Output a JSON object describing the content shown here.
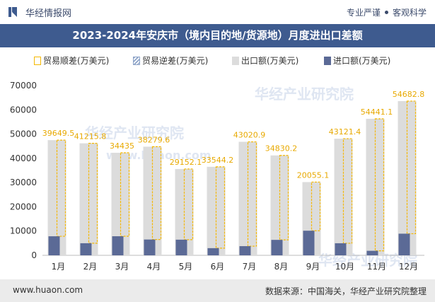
{
  "header": {
    "site_name": "华经情报网",
    "slogan_left": "专业严谨",
    "slogan_right": "客观科学"
  },
  "title": "2023-2024年安庆市（境内目的地/货源地）月度进出口差额",
  "legend": {
    "surplus": "贸易顺差(万美元)",
    "deficit": "贸易逆差(万美元)",
    "export": "出口额(万美元)",
    "import": "进口额(万美元)"
  },
  "footer": {
    "url": "www.huaon.com",
    "source": "数据来源：中国海关，华经产业研究院整理"
  },
  "watermark": {
    "text1": "华经产业研究院",
    "text2": "www.huaon.com"
  },
  "colors": {
    "surplus": "#f5b800",
    "export": "#dcdcdc",
    "import": "#5b6a96",
    "label": "#e8a900",
    "title_bar": "#3e5b8f"
  },
  "chart_data": {
    "type": "bar",
    "categories": [
      "1月",
      "2月",
      "3月",
      "4月",
      "5月",
      "6月",
      "7月",
      "8月",
      "9月",
      "10月",
      "11月",
      "12月"
    ],
    "ylim": [
      0,
      70000
    ],
    "yticks": [
      0,
      10000,
      20000,
      30000,
      40000,
      50000,
      60000,
      70000
    ],
    "series": [
      {
        "name": "贸易顺差(万美元)",
        "values": [
          39649.5,
          41215.8,
          34435,
          38279.6,
          29152.1,
          33544.2,
          43020.9,
          34830.2,
          20055.1,
          43121.4,
          54441.1,
          54682.8
        ]
      },
      {
        "name": "贸易逆差(万美元)",
        "values": [
          0,
          0,
          0,
          0,
          0,
          0,
          0,
          0,
          0,
          0,
          0,
          0
        ]
      },
      {
        "name": "出口额(万美元)",
        "values": [
          47500,
          46200,
          42300,
          44800,
          35600,
          36500,
          46800,
          41200,
          30200,
          48100,
          56300,
          63600
        ]
      },
      {
        "name": "进口额(万美元)",
        "values": [
          7850,
          4985,
          7865,
          6520,
          6450,
          2955,
          3780,
          6370,
          10145,
          4980,
          1860,
          8920
        ]
      }
    ],
    "data_labels": [
      "39649.5",
      "41215.8",
      "34435",
      "38279.6",
      "29152.1",
      "33544.2",
      "43020.9",
      "34830.2",
      "20055.1",
      "43121.4",
      "54441.1",
      "54682.8"
    ]
  }
}
